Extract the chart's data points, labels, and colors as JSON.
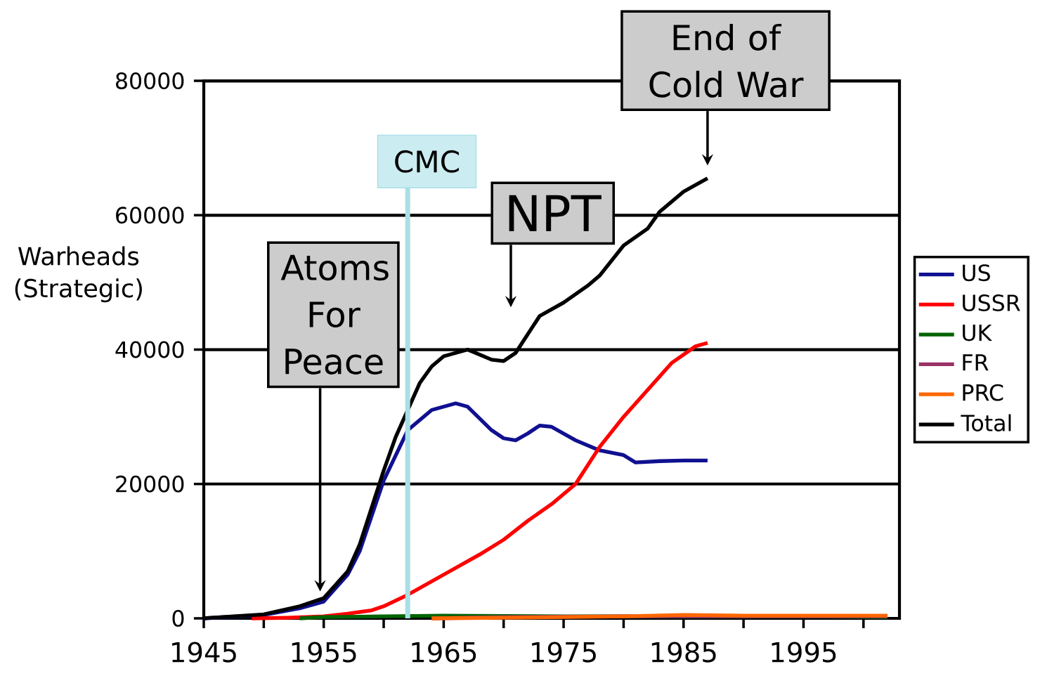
{
  "chart_data": {
    "type": "line",
    "ylabel": "Warheads (Strategic)",
    "xlim": [
      1945,
      2003
    ],
    "ylim": [
      0,
      80000
    ],
    "xticks": [
      1945,
      {
        "value": 1950,
        "label": null
      },
      1955,
      {
        "value": 1960,
        "label": null
      },
      1965,
      {
        "value": 1970,
        "label": null
      },
      1975,
      {
        "value": 1980,
        "label": null
      },
      1985,
      {
        "value": 1990,
        "label": null
      },
      1995,
      {
        "value": 2000,
        "label": null
      }
    ],
    "yticks": [
      0,
      20000,
      40000,
      60000,
      80000
    ],
    "grid": "y",
    "legend": "right",
    "series": [
      {
        "name": "US",
        "color": "#101090",
        "x": [
          1945,
          1950,
          1953,
          1955,
          1957,
          1958,
          1960,
          1962,
          1964,
          1966,
          1967,
          1969,
          1970,
          1971,
          1972,
          1973,
          1974,
          1976,
          1978,
          1980,
          1981,
          1983,
          1985,
          1987
        ],
        "values": [
          0,
          500,
          1500,
          2500,
          6500,
          10000,
          20500,
          28000,
          31000,
          32000,
          31500,
          28000,
          26800,
          26500,
          27500,
          28700,
          28500,
          26500,
          25000,
          24300,
          23200,
          23400,
          23500,
          23500
        ]
      },
      {
        "name": "USSR",
        "color": "#ff0000",
        "x": [
          1949,
          1952,
          1955,
          1957,
          1959,
          1960,
          1962,
          1964,
          1966,
          1968,
          1970,
          1972,
          1974,
          1976,
          1978,
          1980,
          1982,
          1984,
          1986,
          1987
        ],
        "values": [
          0,
          100,
          300,
          700,
          1200,
          1800,
          3500,
          5500,
          7500,
          9500,
          11700,
          14500,
          17000,
          20000,
          25500,
          30000,
          34000,
          38000,
          40500,
          41000
        ]
      },
      {
        "name": "UK",
        "color": "#006400",
        "x": [
          1953,
          1955,
          1960,
          1965,
          1975,
          1985,
          1995,
          2002
        ],
        "values": [
          0,
          200,
          300,
          400,
          300,
          300,
          300,
          200
        ]
      },
      {
        "name": "FR",
        "color": "#993366",
        "x": [
          1964,
          1970,
          1980,
          1990,
          2002
        ],
        "values": [
          0,
          200,
          300,
          300,
          300
        ]
      },
      {
        "name": "PRC",
        "color": "#ff6600",
        "x": [
          1964,
          1970,
          1980,
          1985,
          1990,
          2002
        ],
        "values": [
          0,
          100,
          300,
          500,
          400,
          400
        ]
      },
      {
        "name": "Total",
        "color": "#000000",
        "x": [
          1945,
          1950,
          1953,
          1955,
          1957,
          1958,
          1960,
          1961,
          1962,
          1963,
          1964,
          1965,
          1967,
          1969,
          1970,
          1971,
          1973,
          1975,
          1977,
          1978,
          1980,
          1982,
          1983,
          1985,
          1987
        ],
        "values": [
          0,
          600,
          1800,
          3000,
          7000,
          11000,
          22000,
          27000,
          31000,
          35000,
          37500,
          39000,
          40000,
          38500,
          38300,
          39500,
          45000,
          47000,
          49500,
          51000,
          55500,
          58000,
          60500,
          63500,
          65500
        ]
      }
    ],
    "ref_lines": [
      {
        "axis": "x",
        "value": 1962,
        "label": "CMC",
        "color": "#a8dfe6"
      }
    ],
    "annotations": [
      "Atoms For Peace",
      "NPT",
      "End of Cold War"
    ]
  }
}
